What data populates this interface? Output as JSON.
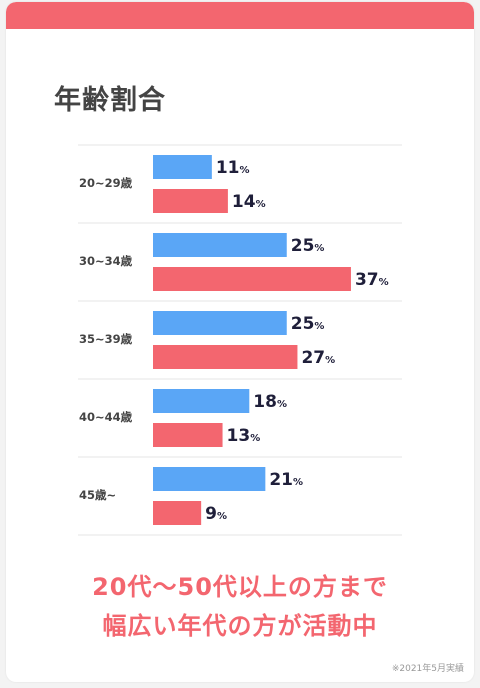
{
  "colors": {
    "accent": "#f3666f",
    "series_a": "#5aa6f6",
    "series_b": "#f3666f"
  },
  "chart_data": {
    "type": "bar",
    "orientation": "horizontal",
    "title": "年齢割合",
    "categories": [
      "20~29歳",
      "30~34歳",
      "35~39歳",
      "40~44歳",
      "45歳~"
    ],
    "series": [
      {
        "values": [
          11,
          25,
          25,
          18,
          21
        ]
      },
      {
        "values": [
          14,
          37,
          27,
          13,
          9
        ]
      }
    ],
    "unit": "%",
    "xlim": [
      0,
      37
    ],
    "grid": false
  },
  "caption": {
    "line1": "20代～50代以上の方まで",
    "line2": "幅広い年代の方が活動中"
  },
  "footnote": "※2021年5月実績"
}
